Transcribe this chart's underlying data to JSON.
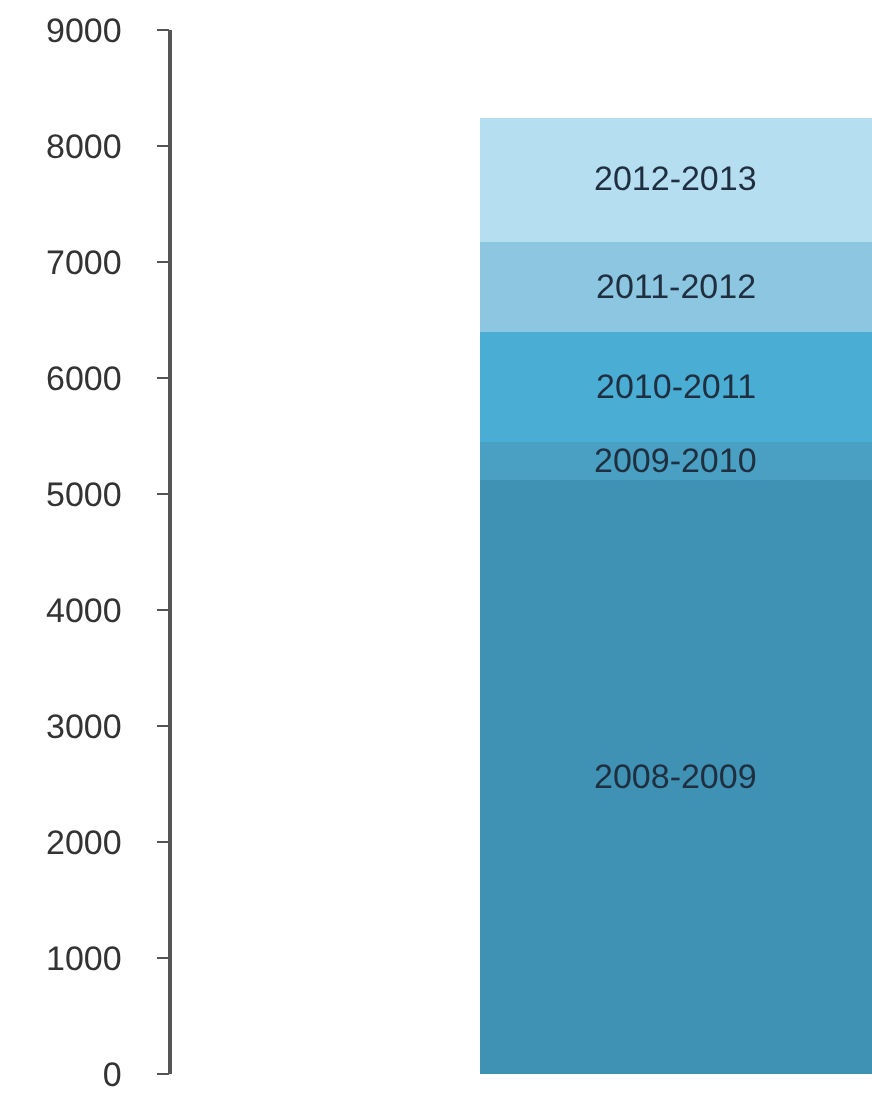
{
  "chart_data": {
    "type": "bar",
    "stacked": true,
    "categories": [
      null
    ],
    "series": [
      {
        "name": "2008-2009",
        "color": "#3f92b4",
        "values": [
          5120
        ]
      },
      {
        "name": "2009-2010",
        "color": "#4aa0c2",
        "values": [
          330
        ]
      },
      {
        "name": "2010-2011",
        "color": "#4aaed4",
        "values": [
          950
        ]
      },
      {
        "name": "2011-2012",
        "color": "#8cc6e0",
        "values": [
          780
        ]
      },
      {
        "name": "2012-2013",
        "color": "#b6def1",
        "values": [
          1070
        ]
      }
    ],
    "ylim": [
      0,
      9000
    ],
    "yticks": [
      0,
      1000,
      2000,
      3000,
      4000,
      5000,
      6000,
      7000,
      8000,
      9000
    ],
    "legend": false,
    "tick_labels": "y"
  }
}
